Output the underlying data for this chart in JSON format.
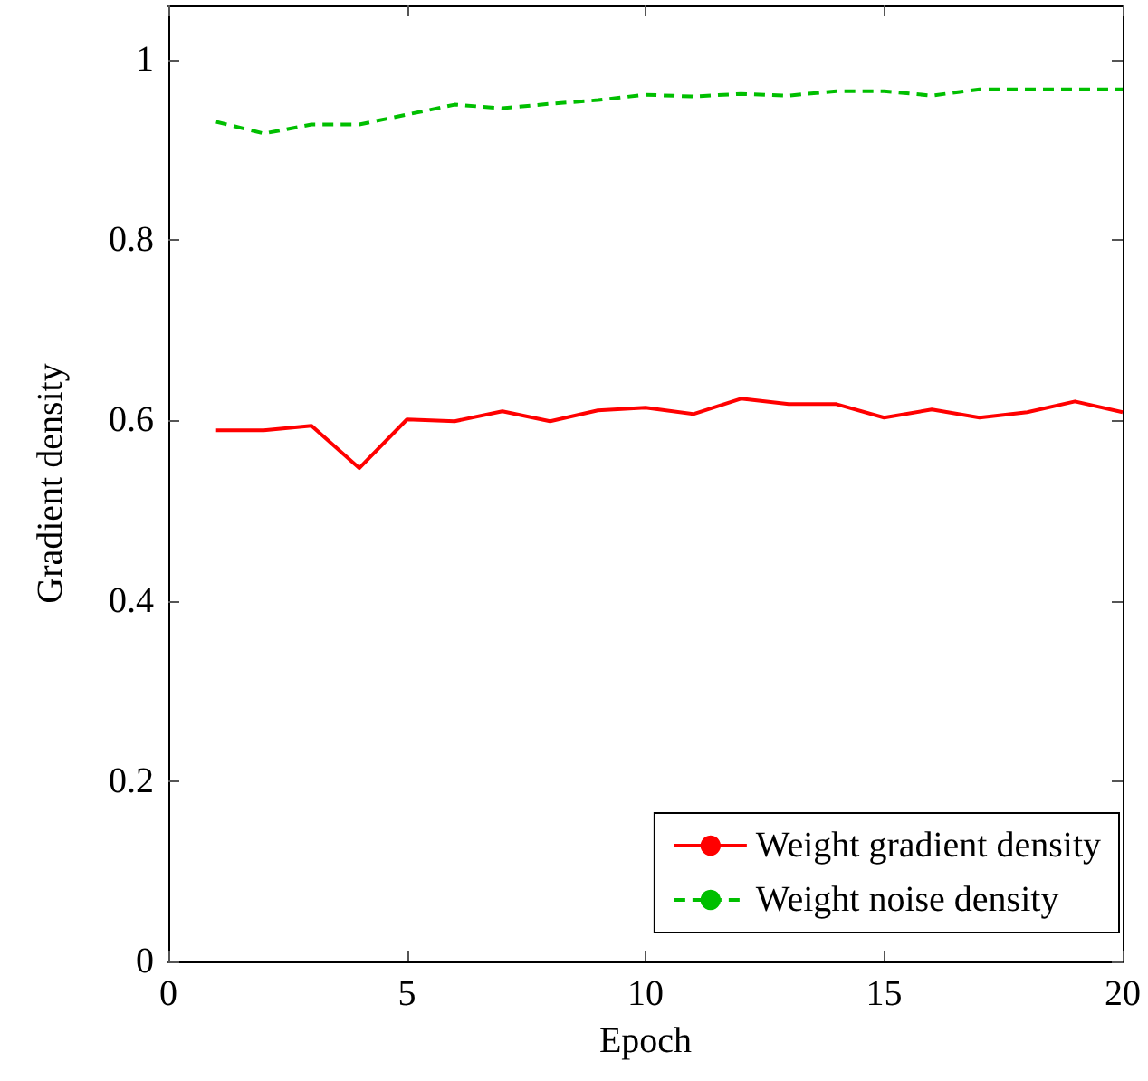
{
  "chart_data": {
    "type": "line",
    "xlabel": "Epoch",
    "ylabel": "Gradient density",
    "x": [
      1,
      2,
      3,
      4,
      5,
      6,
      7,
      8,
      9,
      10,
      11,
      12,
      13,
      14,
      15,
      16,
      17,
      18,
      19,
      20
    ],
    "series": [
      {
        "name": "Weight gradient density",
        "color": "#ff0000",
        "line_style": "solid",
        "values": [
          0.589,
          0.589,
          0.594,
          0.547,
          0.601,
          0.599,
          0.61,
          0.599,
          0.611,
          0.614,
          0.607,
          0.624,
          0.618,
          0.618,
          0.603,
          0.612,
          0.603,
          0.609,
          0.621,
          0.609
        ]
      },
      {
        "name": "Weight noise density",
        "color": "#00bf00",
        "line_style": "dashed",
        "values": [
          0.931,
          0.918,
          0.928,
          0.928,
          0.939,
          0.95,
          0.946,
          0.951,
          0.955,
          0.961,
          0.959,
          0.962,
          0.96,
          0.965,
          0.965,
          0.96,
          0.967,
          0.967,
          0.967,
          0.967
        ]
      }
    ],
    "xlim": [
      0,
      20
    ],
    "xticks": [
      0,
      5,
      10,
      15,
      20
    ],
    "ylim": [
      0,
      1.06
    ],
    "yticks": [
      0,
      0.2,
      0.4,
      0.6,
      0.8,
      1
    ],
    "grid": false,
    "legend": "bottom right",
    "marker": "none"
  }
}
